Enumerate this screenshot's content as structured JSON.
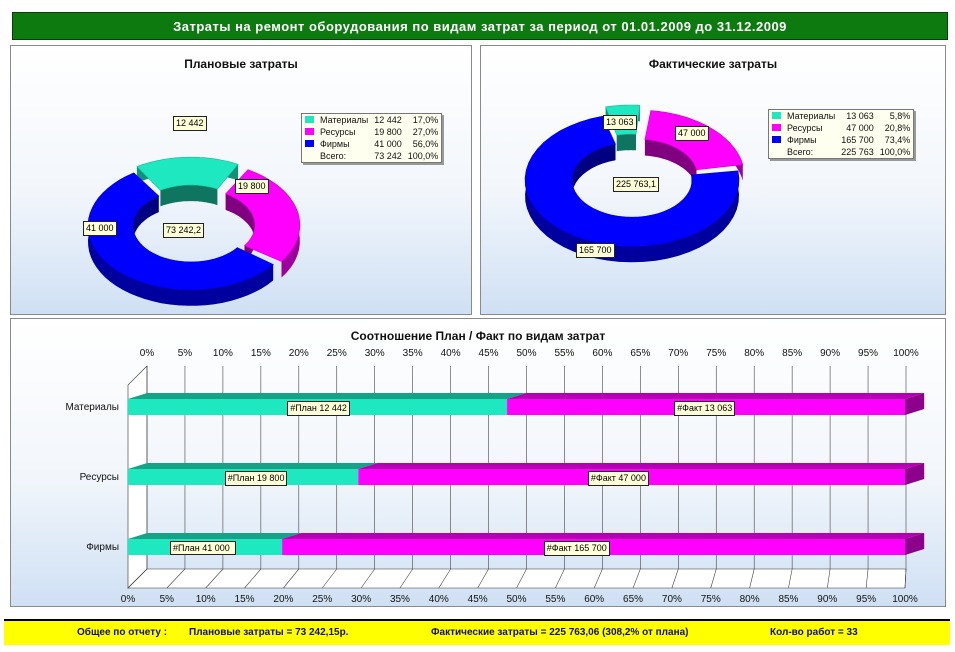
{
  "title": "Затраты на ремонт оборудования по видам затрат за период  от  01.01.2009  до  31.12.2009",
  "colors": {
    "header": "#0d7a10",
    "materials": "#1ee8bf",
    "resources": "#ff00ff",
    "firms": "#0000ff",
    "footer": "#ffff00"
  },
  "chart_data": [
    {
      "type": "pie",
      "title": "Плановые затраты",
      "categories": [
        "Материалы",
        "Ресурсы",
        "Фирмы"
      ],
      "values": [
        12442,
        19800,
        41000
      ],
      "value_labels": [
        "12 442",
        "19 800",
        "41 000"
      ],
      "percents": [
        "17,0%",
        "27,0%",
        "56,0%"
      ],
      "total_label": "Всего:",
      "total_value": "73 242",
      "total_percent": "100,0%",
      "center_label": "73 242,2"
    },
    {
      "type": "pie",
      "title": "Фактические затраты",
      "categories": [
        "Материалы",
        "Ресурсы",
        "Фирмы"
      ],
      "values": [
        13063,
        47000,
        165700
      ],
      "value_labels": [
        "13 063",
        "47 000",
        "165 700"
      ],
      "percents": [
        "5,8%",
        "20,8%",
        "73,4%"
      ],
      "total_label": "Всего:",
      "total_value": "225 763",
      "total_percent": "100,0%",
      "center_label": "225 763,1"
    },
    {
      "type": "bar",
      "title": "Соотношение План / Факт по видам затрат",
      "categories": [
        "Материалы",
        "Ресурсы",
        "Фирмы"
      ],
      "series": [
        {
          "name": "План",
          "values": [
            12442,
            19800,
            41000
          ],
          "labels": [
            "#План 12 442",
            "#План 19 800",
            "#План 41 000"
          ]
        },
        {
          "name": "Факт",
          "values": [
            13063,
            47000,
            165700
          ],
          "labels": [
            "#Факт 13 063",
            "#Факт 47 000",
            "#Факт 165 700"
          ]
        }
      ],
      "xticks": [
        "0%",
        "5%",
        "10%",
        "15%",
        "20%",
        "25%",
        "30%",
        "35%",
        "40%",
        "45%",
        "50%",
        "55%",
        "60%",
        "65%",
        "70%",
        "75%",
        "80%",
        "85%",
        "90%",
        "95%",
        "100%"
      ],
      "xlim": [
        0,
        100
      ]
    }
  ],
  "footer": {
    "total_label": "Общее по отчету :",
    "plan": "Плановые затраты =    73 242,15р.",
    "fact": "Фактические затраты = 225 763,06 (308,2% от плана)",
    "works": "Кол-во работ =  33"
  }
}
